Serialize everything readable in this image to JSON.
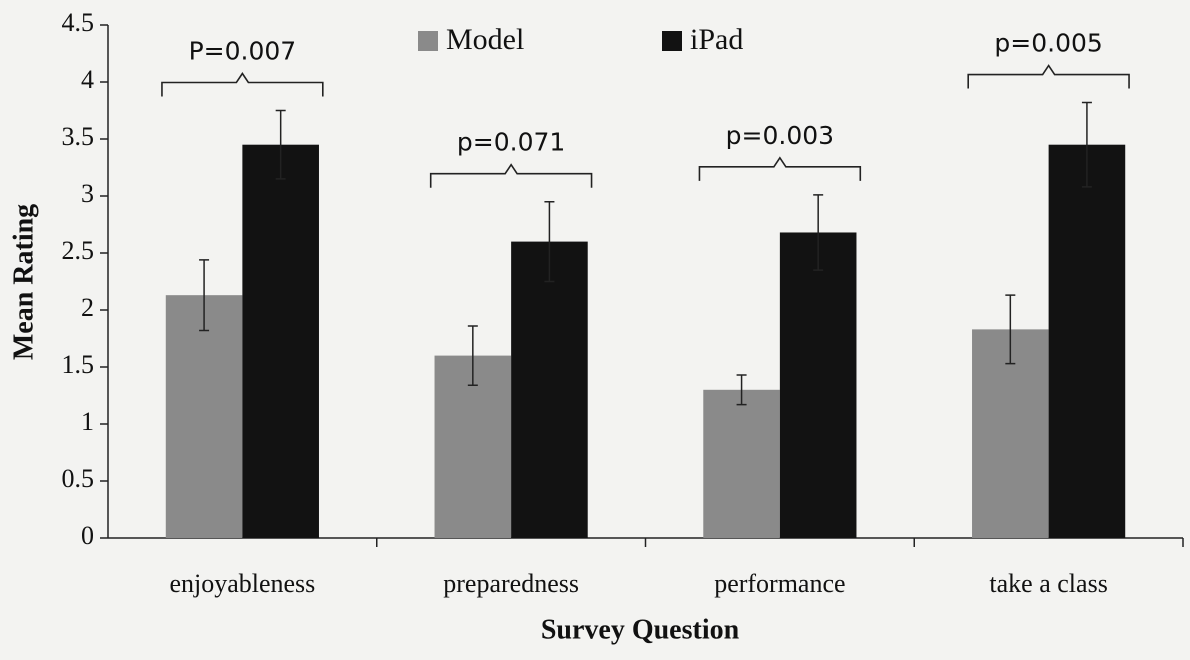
{
  "chart_data": {
    "type": "bar",
    "x_label": "Survey Question",
    "y_label": "Mean Rating",
    "categories": [
      "enjoyableness",
      "preparedness",
      "performance",
      "take a class"
    ],
    "series": [
      {
        "name": "Model",
        "color": "#8a8a8a",
        "values": [
          2.13,
          1.6,
          1.3,
          1.83
        ],
        "errors": [
          0.31,
          0.26,
          0.13,
          0.3
        ]
      },
      {
        "name": "iPad",
        "color": "#121212",
        "values": [
          3.45,
          2.6,
          2.68,
          3.45
        ],
        "errors": [
          0.3,
          0.35,
          0.33,
          0.37
        ]
      }
    ],
    "annotations": [
      "P=0.007",
      "p=0.071",
      "p=0.003",
      "p=0.005"
    ],
    "ylim": [
      0,
      4.5
    ],
    "yticks": [
      0,
      0.5,
      1,
      1.5,
      2,
      2.5,
      3,
      3.5,
      4,
      4.5
    ],
    "legend": "top"
  }
}
